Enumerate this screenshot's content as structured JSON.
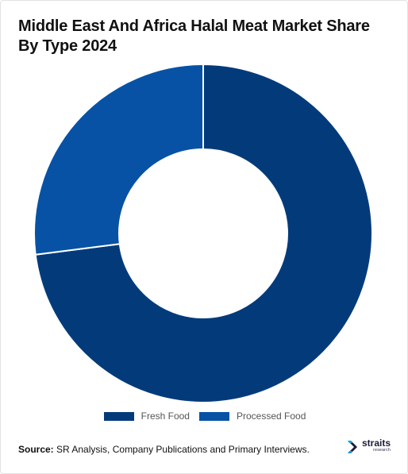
{
  "title": "Middle East And Africa Halal Meat Market Share By Type 2024",
  "chart_data": {
    "type": "pie",
    "donut": true,
    "categories": [
      "Fresh Food",
      "Processed Food"
    ],
    "values": [
      73,
      27
    ],
    "colors": [
      "#033b7a",
      "#0752a4"
    ],
    "legend_position": "bottom"
  },
  "source": {
    "label": "Source:",
    "text": "SR Analysis, Company Publications and Primary Interviews."
  },
  "logo": {
    "word": "straits",
    "sub": "research"
  }
}
